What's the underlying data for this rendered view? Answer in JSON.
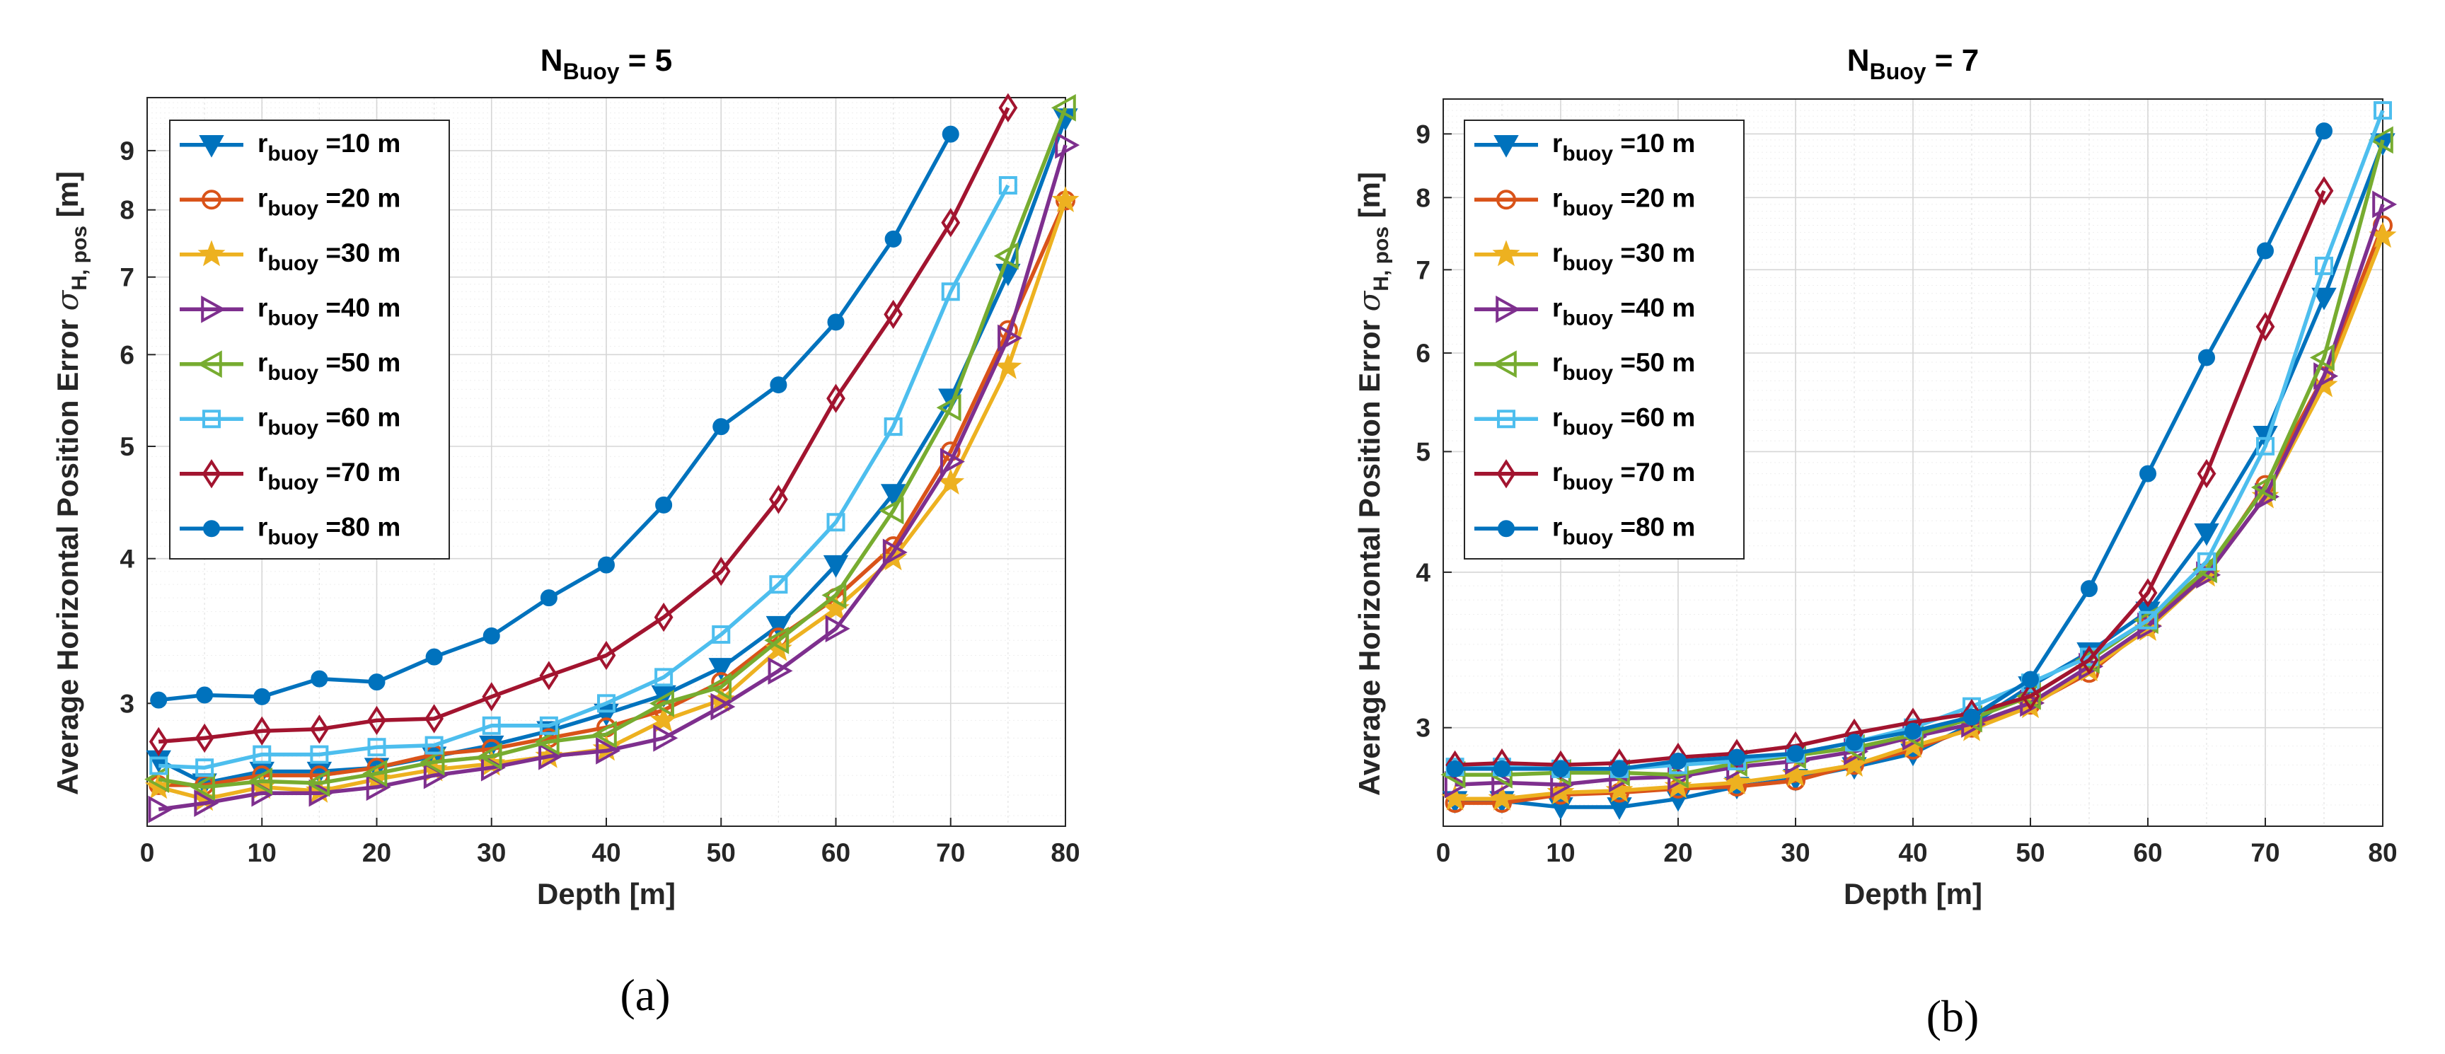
{
  "colors": {
    "10": "#0072BD",
    "20": "#D95319",
    "30": "#EDB120",
    "40": "#7E2F8E",
    "50": "#77AC30",
    "60": "#4DBEEE",
    "70": "#A2142F",
    "80": "#0072BD"
  },
  "chart_data": [
    {
      "type": "line",
      "caption": "(a)",
      "title": "N_Buoy = 5",
      "title_main": "N",
      "title_sub": "Buoy",
      "title_rest": " = 5",
      "xlabel": "Depth [m]",
      "ylabel_prefix": "Average Horizontal Position Error ",
      "ylabel_sigma": "σ",
      "ylabel_sub": "H, pos",
      "ylabel_unit": " [m]",
      "xlim": [
        0,
        80
      ],
      "ylim": [
        2.35,
        10.0
      ],
      "yscale": "log",
      "xticks": [
        0,
        10,
        20,
        30,
        40,
        50,
        60,
        70,
        80
      ],
      "yticks": [
        3,
        4,
        5,
        6,
        7,
        8,
        9
      ],
      "grid": true,
      "legend_position": "top-left",
      "x": [
        1,
        5,
        10,
        15,
        20,
        25,
        30,
        35,
        40,
        45,
        50,
        55,
        60,
        65,
        70,
        75,
        80
      ],
      "series": [
        {
          "name": "r_buoy =10 m",
          "label_main": "r",
          "label_sub": "buoy",
          "label_rest": " =10 m",
          "key": "10",
          "marker": "tri-down",
          "values": [
            2.68,
            2.56,
            2.62,
            2.62,
            2.64,
            2.7,
            2.76,
            2.84,
            2.94,
            3.05,
            3.22,
            3.5,
            3.95,
            4.55,
            5.5,
            7.05,
            9.6
          ]
        },
        {
          "name": "r_buoy =20 m",
          "label_main": "r",
          "label_sub": "buoy",
          "label_rest": " =20 m",
          "key": "20",
          "marker": "circle",
          "values": [
            2.55,
            2.55,
            2.6,
            2.6,
            2.64,
            2.71,
            2.74,
            2.8,
            2.86,
            2.96,
            3.13,
            3.42,
            3.7,
            4.1,
            4.95,
            6.3,
            8.15
          ]
        },
        {
          "name": "r_buoy =30 m",
          "label_main": "r",
          "label_sub": "buoy",
          "label_rest": " =30 m",
          "key": "30",
          "marker": "star",
          "values": [
            2.54,
            2.48,
            2.54,
            2.52,
            2.58,
            2.63,
            2.66,
            2.7,
            2.74,
            2.9,
            3.02,
            3.34,
            3.62,
            4.0,
            4.65,
            5.85,
            8.15
          ]
        },
        {
          "name": "r_buoy =40 m",
          "label_main": "r",
          "label_sub": "buoy",
          "label_rest": " =40 m",
          "key": "40",
          "marker": "tri-right",
          "values": [
            2.43,
            2.46,
            2.51,
            2.51,
            2.54,
            2.6,
            2.64,
            2.7,
            2.73,
            2.8,
            2.98,
            3.2,
            3.48,
            4.05,
            4.85,
            6.2,
            9.1
          ]
        },
        {
          "name": "r_buoy =50 m",
          "label_main": "r",
          "label_sub": "buoy",
          "label_rest": " =50 m",
          "key": "50",
          "marker": "tri-left",
          "values": [
            2.58,
            2.54,
            2.57,
            2.56,
            2.61,
            2.67,
            2.7,
            2.78,
            2.82,
            3.0,
            3.1,
            3.4,
            3.72,
            4.4,
            5.4,
            7.3,
            9.8
          ]
        },
        {
          "name": "r_buoy =60 m",
          "label_main": "r",
          "label_sub": "buoy",
          "label_rest": " =60 m",
          "key": "60",
          "marker": "square",
          "values": [
            2.65,
            2.64,
            2.71,
            2.71,
            2.75,
            2.76,
            2.87,
            2.87,
            3.0,
            3.16,
            3.44,
            3.8,
            4.3,
            5.2,
            6.8,
            8.4,
            null
          ]
        },
        {
          "name": "r_buoy =70 m",
          "label_main": "r",
          "label_sub": "buoy",
          "label_rest": " =70 m",
          "key": "70",
          "marker": "diamond",
          "values": [
            2.78,
            2.8,
            2.84,
            2.85,
            2.9,
            2.91,
            3.04,
            3.17,
            3.3,
            3.56,
            3.9,
            4.5,
            5.5,
            6.5,
            7.8,
            9.8,
            null
          ]
        },
        {
          "name": "r_buoy =80 m",
          "label_main": "r",
          "label_sub": "buoy",
          "label_rest": " =80 m",
          "key": "80",
          "marker": "dot",
          "values": [
            3.02,
            3.05,
            3.04,
            3.15,
            3.13,
            3.29,
            3.43,
            3.7,
            3.95,
            4.45,
            5.2,
            5.65,
            6.4,
            7.55,
            9.3,
            null,
            null
          ]
        }
      ]
    },
    {
      "type": "line",
      "caption": "(b)",
      "title": "N_Buoy = 7",
      "title_main": "N",
      "title_sub": "Buoy",
      "title_rest": " = 7",
      "xlabel": "Depth [m]",
      "ylabel_prefix": "Average Horizontal Position Error ",
      "ylabel_sigma": "σ",
      "ylabel_sub": "H, pos",
      "ylabel_unit": " [m]",
      "xlim": [
        0,
        80
      ],
      "ylim": [
        2.5,
        9.6
      ],
      "yscale": "log",
      "xticks": [
        0,
        10,
        20,
        30,
        40,
        50,
        60,
        70,
        80
      ],
      "yticks": [
        3,
        4,
        5,
        6,
        7,
        8,
        9
      ],
      "grid": true,
      "legend_position": "top-left",
      "x": [
        1,
        5,
        10,
        15,
        20,
        25,
        30,
        35,
        40,
        45,
        50,
        55,
        60,
        65,
        70,
        75,
        80
      ],
      "series": [
        {
          "name": "r_buoy =10 m",
          "label_main": "r",
          "label_sub": "buoy",
          "label_rest": " =10 m",
          "key": "10",
          "marker": "tri-down",
          "values": [
            2.62,
            2.62,
            2.59,
            2.59,
            2.63,
            2.69,
            2.73,
            2.79,
            2.86,
            3.02,
            3.24,
            3.45,
            3.72,
            4.3,
            5.15,
            6.65,
            8.85
          ]
        },
        {
          "name": "r_buoy =20 m",
          "label_main": "r",
          "label_sub": "buoy",
          "label_rest": " =20 m",
          "key": "20",
          "marker": "circle",
          "values": [
            2.61,
            2.61,
            2.65,
            2.66,
            2.68,
            2.69,
            2.72,
            2.8,
            2.88,
            3.0,
            3.13,
            3.32,
            3.62,
            4.0,
            4.7,
            5.75,
            7.6
          ]
        },
        {
          "name": "r_buoy =30 m",
          "label_main": "r",
          "label_sub": "buoy",
          "label_rest": " =30 m",
          "key": "30",
          "marker": "star",
          "values": [
            2.63,
            2.63,
            2.66,
            2.67,
            2.69,
            2.71,
            2.75,
            2.8,
            2.9,
            2.99,
            3.12,
            3.34,
            3.6,
            3.98,
            4.6,
            5.65,
            7.45
          ]
        },
        {
          "name": "r_buoy =40 m",
          "label_main": "r",
          "label_sub": "buoy",
          "label_rest": " =40 m",
          "key": "40",
          "marker": "tri-right",
          "values": [
            2.7,
            2.71,
            2.7,
            2.73,
            2.74,
            2.79,
            2.82,
            2.87,
            2.95,
            3.02,
            3.14,
            3.36,
            3.62,
            3.98,
            4.6,
            5.75,
            7.9
          ]
        },
        {
          "name": "r_buoy =50 m",
          "label_main": "r",
          "label_sub": "buoy",
          "label_rest": " =50 m",
          "key": "50",
          "marker": "tri-left",
          "values": [
            2.75,
            2.75,
            2.76,
            2.76,
            2.75,
            2.81,
            2.85,
            2.89,
            2.96,
            3.05,
            3.18,
            3.4,
            3.66,
            4.02,
            4.68,
            5.95,
            8.9
          ]
        },
        {
          "name": "r_buoy =60 m",
          "label_main": "r",
          "label_sub": "buoy",
          "label_rest": " =60 m",
          "key": "60",
          "marker": "square",
          "values": [
            2.79,
            2.79,
            2.78,
            2.78,
            2.8,
            2.82,
            2.86,
            2.92,
            3.0,
            3.12,
            3.26,
            3.42,
            3.66,
            4.08,
            5.05,
            7.05,
            9.4
          ]
        },
        {
          "name": "r_buoy =70 m",
          "label_main": "r",
          "label_sub": "buoy",
          "label_rest": " =70 m",
          "key": "70",
          "marker": "diamond",
          "values": [
            2.8,
            2.81,
            2.8,
            2.81,
            2.84,
            2.86,
            2.9,
            2.97,
            3.03,
            3.08,
            3.18,
            3.4,
            3.85,
            4.8,
            6.3,
            8.1,
            null
          ]
        },
        {
          "name": "r_buoy =80 m",
          "label_main": "r",
          "label_sub": "buoy",
          "label_rest": " =80 m",
          "key": "80",
          "marker": "dot",
          "values": [
            2.78,
            2.78,
            2.78,
            2.78,
            2.82,
            2.84,
            2.86,
            2.92,
            2.98,
            3.06,
            3.28,
            3.88,
            4.8,
            5.95,
            7.25,
            9.05,
            null
          ]
        }
      ]
    }
  ]
}
